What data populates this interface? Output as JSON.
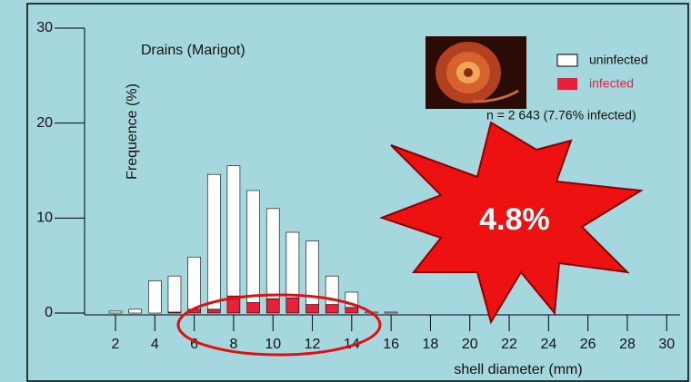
{
  "chart_data": {
    "type": "stacked-histogram",
    "title": "Drains (Marigot)",
    "y_label": "Frequence (%)",
    "x_label": "shell diameter (mm)",
    "annotation": "n = 2 643 (7.76% infected)",
    "highlight": "4.8%",
    "x": [
      2,
      3,
      4,
      5,
      6,
      7,
      8,
      9,
      10,
      11,
      12,
      13,
      14,
      15,
      16
    ],
    "series": [
      {
        "name": "infected",
        "color": "#e8203c",
        "values": [
          0,
          0,
          0,
          0.1,
          0.4,
          0.4,
          1.8,
          1.1,
          1.5,
          1.6,
          0.9,
          0.9,
          0.6,
          0,
          0
        ]
      },
      {
        "name": "uninfected",
        "color": "#ffffff",
        "values": [
          0.2,
          0.4,
          3.4,
          3.8,
          5.5,
          14.2,
          13.7,
          11.8,
          9.5,
          6.9,
          6.7,
          3.0,
          1.6,
          0.1,
          0.1
        ]
      }
    ],
    "xlim": [
      0.43,
      30.68
    ],
    "xticks": [
      2,
      4,
      6,
      8,
      10,
      12,
      14,
      16,
      18,
      20,
      22,
      24,
      26,
      28,
      30
    ],
    "ylim": [
      0,
      30
    ],
    "yticks": [
      0,
      10,
      20,
      30
    ]
  }
}
